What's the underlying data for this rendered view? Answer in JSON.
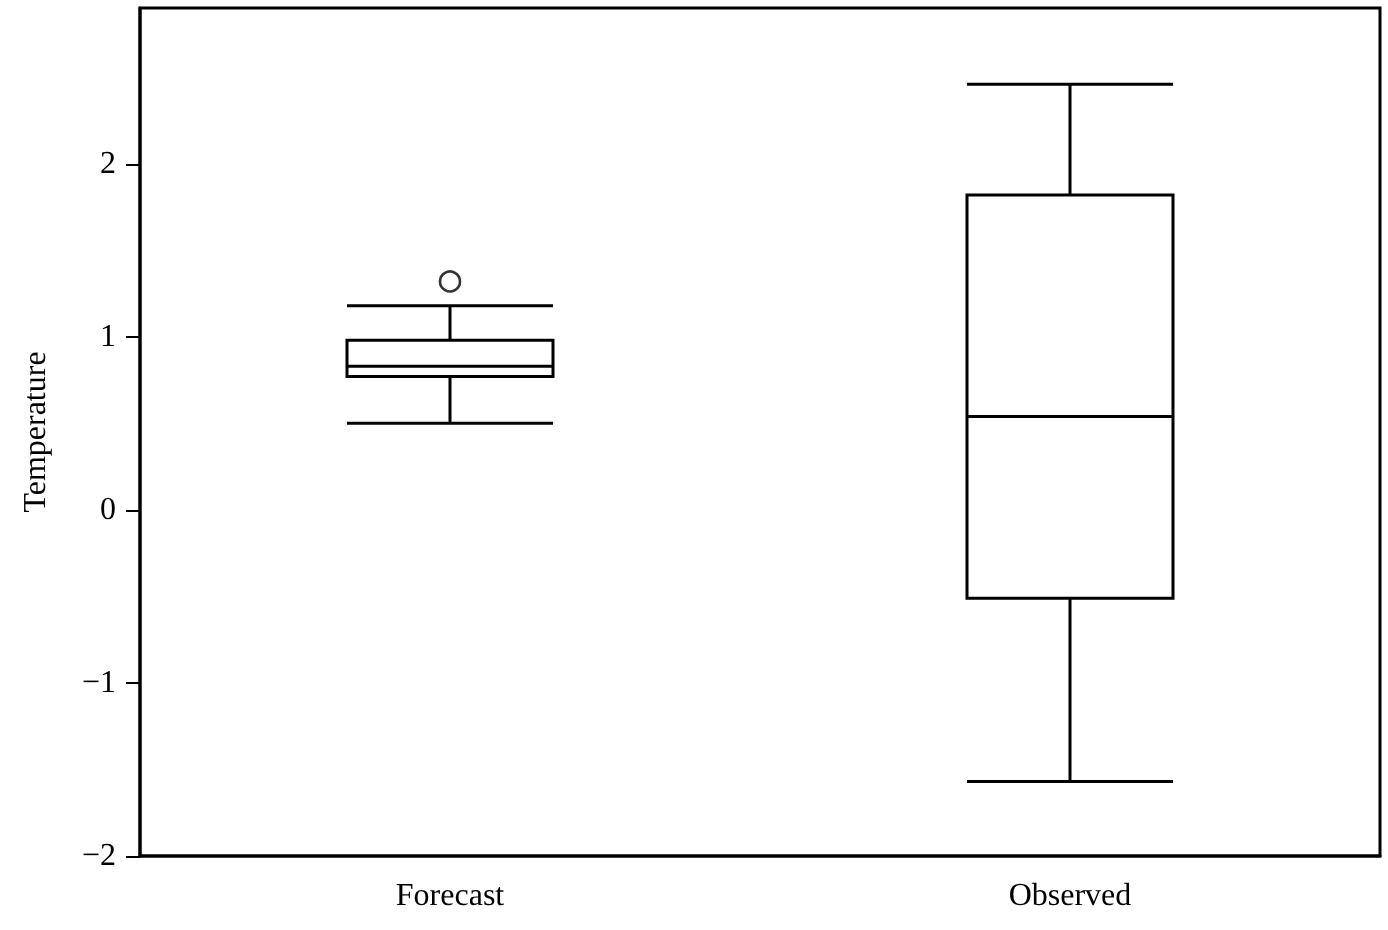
{
  "chart_data": {
    "type": "box",
    "ylabel": "Temperature",
    "categories": [
      "Forecast",
      "Observed"
    ],
    "boxes": [
      {
        "low": 0.5,
        "q1": 0.77,
        "median": 0.83,
        "q3": 0.98,
        "high": 1.18,
        "outliers": [
          1.32
        ]
      },
      {
        "low": -1.57,
        "q1": -0.51,
        "median": 0.54,
        "q3": 1.82,
        "high": 2.46
      }
    ],
    "ylim": [
      -2,
      2.9
    ],
    "yticks": [
      -2,
      -1,
      0,
      1,
      2
    ],
    "color": "#000000"
  }
}
